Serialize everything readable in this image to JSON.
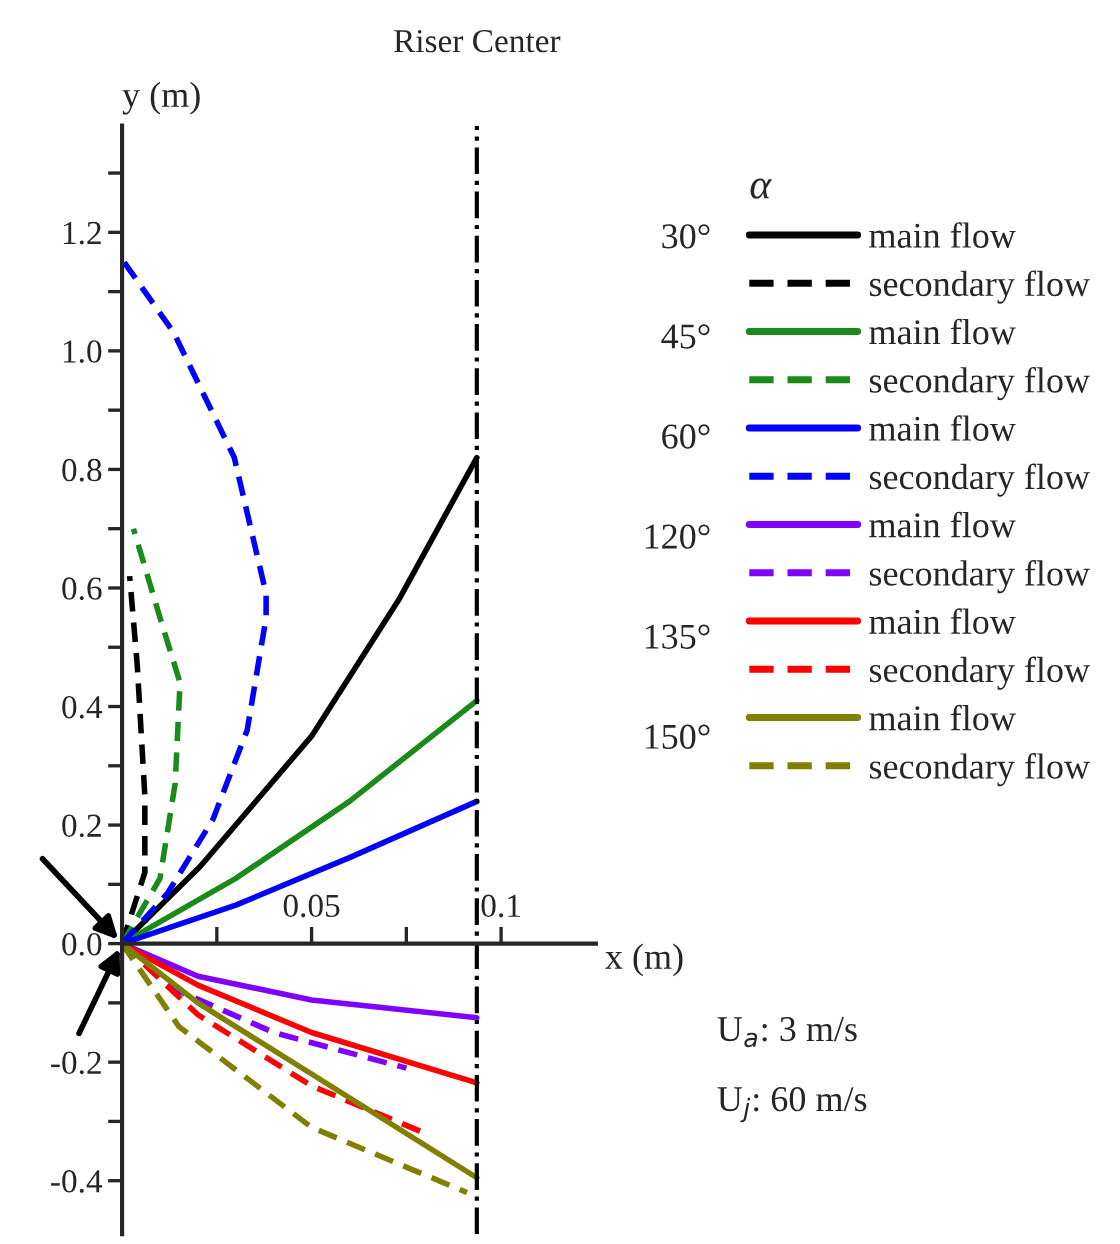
{
  "chart_data": {
    "type": "line",
    "xlabel": "x (m)",
    "ylabel": "y (m)",
    "legend_title": "α",
    "xlim": [
      0,
      0.125
    ],
    "ylim": [
      -0.49,
      1.38
    ],
    "xticks": [
      {
        "value": 0.025,
        "label": null
      },
      0.05,
      {
        "value": 0.075,
        "label": null
      },
      0.1
    ],
    "yticks": [
      {
        "value": -0.4,
        "label": "-0.4"
      },
      {
        "value": -0.3,
        "label": null
      },
      {
        "value": -0.2,
        "label": "-0.2"
      },
      {
        "value": -0.1,
        "label": null
      },
      {
        "value": 0,
        "label": "0.0"
      },
      {
        "value": 0.1,
        "label": null
      },
      0.2,
      {
        "value": 0.3,
        "label": null
      },
      0.4,
      {
        "value": 0.5,
        "label": null
      },
      0.6,
      {
        "value": 0.7,
        "label": null
      },
      0.8,
      {
        "value": 0.9,
        "label": null
      },
      {
        "value": 1.0,
        "label": "1.0"
      },
      {
        "value": 1.1,
        "label": null
      },
      1.2,
      {
        "value": 1.3,
        "label": null
      }
    ],
    "grid": false,
    "legend": "right",
    "marker": "none",
    "ref_lines": [
      {
        "axis": "x",
        "value": 0.0936,
        "label": "Riser Center",
        "color": "#000000",
        "line_style": "dashdot"
      }
    ],
    "annotations": [
      "30°",
      "45°",
      "60°",
      "120°",
      "135°",
      "150°",
      "U$_{a}$: 3 m/s",
      "U$_{j}$: 60 m/s"
    ],
    "series": [
      {
        "name": "main flow",
        "color": "#000000",
        "line_style": "solid",
        "x": [
          0,
          0.0206,
          0.05,
          0.073,
          0.0936
        ],
        "values": [
          0,
          0.13,
          0.35,
          0.58,
          0.82
        ]
      },
      {
        "name": "secondary flow",
        "color": "#000000",
        "line_style": "dashed",
        "x": [
          0,
          0.006,
          0.006,
          0.004,
          0.002
        ],
        "values": [
          0,
          0.12,
          0.25,
          0.47,
          0.62
        ]
      },
      {
        "name": "main flow",
        "color": "#1a8a1a",
        "line_style": "solid",
        "x": [
          0,
          0.03,
          0.06,
          0.0936
        ],
        "values": [
          0,
          0.11,
          0.24,
          0.41
        ]
      },
      {
        "name": "secondary flow",
        "color": "#1a8a1a",
        "line_style": "dashed",
        "x": [
          0,
          0.01,
          0.014,
          0.0153,
          0.01,
          0.003
        ],
        "values": [
          0,
          0.11,
          0.27,
          0.44,
          0.55,
          0.7
        ]
      },
      {
        "name": "main flow",
        "color": "#0000ff",
        "line_style": "solid",
        "x": [
          0,
          0.03,
          0.06,
          0.0936
        ],
        "values": [
          0,
          0.065,
          0.145,
          0.24
        ]
      },
      {
        "name": "secondary flow",
        "color": "#0000ff",
        "line_style": "dashed",
        "x": [
          0,
          0.012,
          0.024,
          0.033,
          0.038,
          0.038,
          0.0296,
          0.0137,
          0.0005
        ],
        "values": [
          0,
          0.085,
          0.21,
          0.36,
          0.55,
          0.59,
          0.82,
          1.03,
          1.15
        ]
      },
      {
        "name": "main flow",
        "color": "#8000ff",
        "line_style": "solid",
        "x": [
          0,
          0.02,
          0.05,
          0.0936
        ],
        "values": [
          0,
          -0.055,
          -0.095,
          -0.125
        ]
      },
      {
        "name": "secondary flow",
        "color": "#8000ff",
        "line_style": "dashed",
        "x": [
          0,
          0.015,
          0.04,
          0.075
        ],
        "values": [
          0,
          -0.08,
          -0.15,
          -0.21
        ]
      },
      {
        "name": "main flow",
        "color": "#ff0000",
        "line_style": "solid",
        "x": [
          0,
          0.02,
          0.05,
          0.0936
        ],
        "values": [
          0,
          -0.07,
          -0.15,
          -0.235
        ]
      },
      {
        "name": "secondary flow",
        "color": "#ff0000",
        "line_style": "dashed",
        "x": [
          0,
          0.02,
          0.05,
          0.08
        ],
        "values": [
          0,
          -0.12,
          -0.24,
          -0.32
        ]
      },
      {
        "name": "main flow",
        "color": "#808000",
        "line_style": "solid",
        "x": [
          0,
          0.02,
          0.05,
          0.0936
        ],
        "values": [
          0,
          -0.1,
          -0.22,
          -0.395
        ]
      },
      {
        "name": "secondary flow",
        "color": "#808000",
        "line_style": "dashed",
        "x": [
          0,
          0.015,
          0.05,
          0.091
        ],
        "values": [
          0,
          -0.14,
          -0.31,
          -0.42
        ]
      }
    ]
  }
}
